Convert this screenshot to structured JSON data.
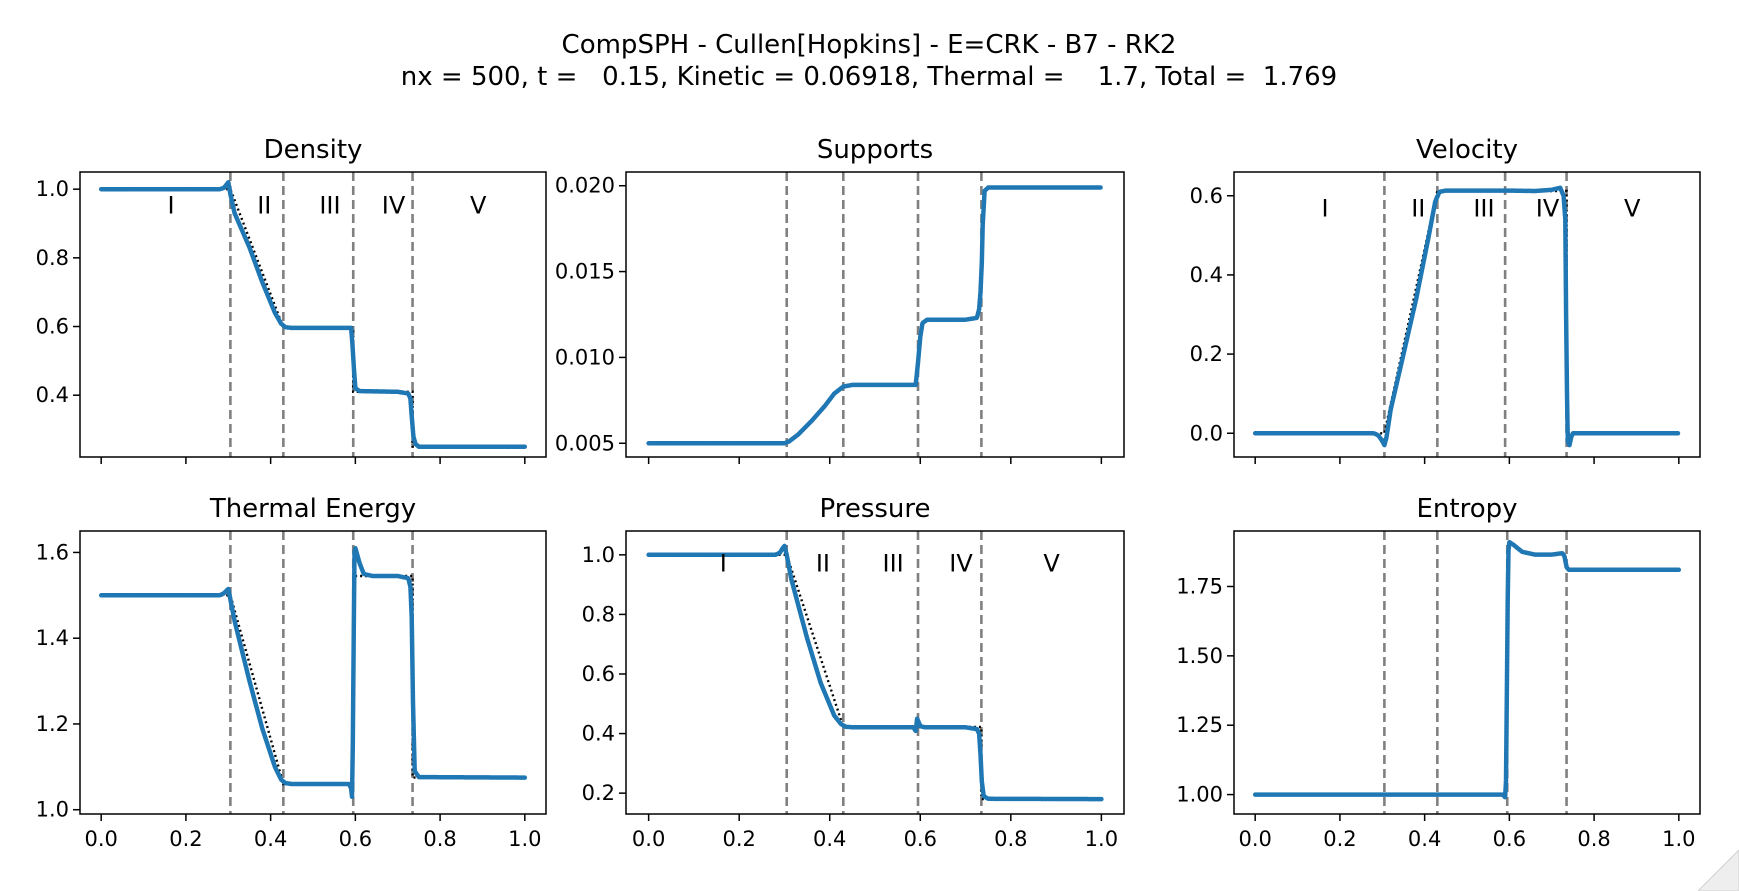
{
  "figure": {
    "title_line1": "CompSPH - Cullen[Hopkins] - E=CRK - B7 - RK2",
    "title_line2": "nx = 500, t =   0.15, Kinetic = 0.06918, Thermal =    1.7, Total =  1.769"
  },
  "colors": {
    "simulation": "#1f77b4",
    "reference": "#000000",
    "region_lines": "#808080"
  },
  "chart_data": [
    {
      "type": "line",
      "title": "Density",
      "xlim": [
        -0.05,
        1.05
      ],
      "ylim": [
        0.22,
        1.05
      ],
      "xticks": [
        0.0,
        0.2,
        0.4,
        0.6,
        0.8,
        1.0
      ],
      "xtick_labels_visible": false,
      "yticks": [
        0.4,
        0.6,
        0.8,
        1.0
      ],
      "ytick_labels": [
        "0.4",
        "0.6",
        "0.8",
        "1.0"
      ],
      "region_lines": [
        0.305,
        0.43,
        0.595,
        0.735
      ],
      "regions": [
        {
          "label": "I",
          "x": 0.165
        },
        {
          "label": "II",
          "x": 0.385
        },
        {
          "label": "III",
          "x": 0.54
        },
        {
          "label": "IV",
          "x": 0.69
        },
        {
          "label": "V",
          "x": 0.89
        }
      ],
      "region_label_y": 0.955,
      "series": [
        {
          "role": "reference",
          "x": [
            0.0,
            0.305,
            0.43,
            0.595,
            0.595,
            0.735,
            0.735,
            1.0
          ],
          "y": [
            1.0,
            1.0,
            0.597,
            0.597,
            0.41,
            0.41,
            0.25,
            0.25
          ]
        },
        {
          "role": "simulation",
          "x": [
            0.0,
            0.28,
            0.29,
            0.295,
            0.3,
            0.305,
            0.315,
            0.35,
            0.38,
            0.41,
            0.425,
            0.435,
            0.45,
            0.59,
            0.593,
            0.597,
            0.6,
            0.61,
            0.7,
            0.725,
            0.73,
            0.733,
            0.737,
            0.742,
            0.75,
            1.0
          ],
          "y": [
            1.0,
            1.0,
            1.004,
            1.012,
            1.02,
            0.985,
            0.93,
            0.83,
            0.73,
            0.64,
            0.608,
            0.598,
            0.596,
            0.596,
            0.55,
            0.47,
            0.42,
            0.412,
            0.41,
            0.405,
            0.39,
            0.34,
            0.28,
            0.258,
            0.25,
            0.25
          ]
        }
      ]
    },
    {
      "type": "line",
      "title": "Supports",
      "xlim": [
        -0.05,
        1.05
      ],
      "ylim": [
        0.0042,
        0.0208
      ],
      "xticks": [
        0.0,
        0.2,
        0.4,
        0.6,
        0.8,
        1.0
      ],
      "xtick_labels_visible": false,
      "yticks": [
        0.005,
        0.01,
        0.015,
        0.02
      ],
      "ytick_labels": [
        "0.005",
        "0.010",
        "0.015",
        "0.020"
      ],
      "region_lines": [
        0.305,
        0.43,
        0.595,
        0.735
      ],
      "regions": [],
      "region_label_y": null,
      "series": [
        {
          "role": "simulation",
          "x": [
            0.0,
            0.3,
            0.31,
            0.33,
            0.36,
            0.39,
            0.41,
            0.43,
            0.45,
            0.59,
            0.595,
            0.6,
            0.605,
            0.615,
            0.7,
            0.725,
            0.73,
            0.733,
            0.736,
            0.738,
            0.742,
            0.75,
            1.0
          ],
          "y": [
            0.005,
            0.005,
            0.0051,
            0.0055,
            0.0063,
            0.0072,
            0.0079,
            0.0083,
            0.0084,
            0.0084,
            0.0097,
            0.0112,
            0.012,
            0.0122,
            0.0122,
            0.0123,
            0.0128,
            0.0138,
            0.0155,
            0.0177,
            0.0197,
            0.0199,
            0.0199
          ]
        }
      ]
    },
    {
      "type": "line",
      "title": "Velocity",
      "xlim": [
        -0.05,
        1.05
      ],
      "ylim": [
        -0.06,
        0.66
      ],
      "xticks": [
        0.0,
        0.2,
        0.4,
        0.6,
        0.8,
        1.0
      ],
      "xtick_labels_visible": false,
      "yticks": [
        0.0,
        0.2,
        0.4,
        0.6
      ],
      "ytick_labels": [
        "0.0",
        "0.2",
        "0.4",
        "0.6"
      ],
      "region_lines": [
        0.305,
        0.43,
        0.59,
        0.735
      ],
      "regions": [
        {
          "label": "I",
          "x": 0.165
        },
        {
          "label": "II",
          "x": 0.385
        },
        {
          "label": "III",
          "x": 0.54
        },
        {
          "label": "IV",
          "x": 0.69
        },
        {
          "label": "V",
          "x": 0.89
        }
      ],
      "region_label_y": 0.57,
      "series": [
        {
          "role": "reference",
          "x": [
            0.0,
            0.305,
            0.43,
            0.735,
            0.735,
            1.0
          ],
          "y": [
            0.0,
            0.0,
            0.612,
            0.612,
            0.0,
            0.0
          ]
        },
        {
          "role": "simulation",
          "x": [
            0.0,
            0.28,
            0.29,
            0.295,
            0.3,
            0.305,
            0.31,
            0.32,
            0.35,
            0.38,
            0.41,
            0.425,
            0.435,
            0.45,
            0.6,
            0.66,
            0.7,
            0.72,
            0.728,
            0.732,
            0.734,
            0.736,
            0.738,
            0.742,
            0.746,
            0.75,
            0.76,
            1.0
          ],
          "y": [
            0.0,
            0.0,
            -0.005,
            -0.012,
            -0.02,
            -0.03,
            -0.01,
            0.06,
            0.2,
            0.34,
            0.5,
            0.585,
            0.61,
            0.613,
            0.613,
            0.612,
            0.615,
            0.62,
            0.6,
            0.54,
            0.3,
            0.1,
            -0.02,
            -0.03,
            -0.01,
            0.0,
            0.0,
            0.0
          ]
        }
      ]
    },
    {
      "type": "line",
      "title": "Thermal Energy",
      "xlim": [
        -0.05,
        1.05
      ],
      "ylim": [
        0.99,
        1.65
      ],
      "xticks": [
        0.0,
        0.2,
        0.4,
        0.6,
        0.8,
        1.0
      ],
      "xtick_labels": [
        "0.0",
        "0.2",
        "0.4",
        "0.6",
        "0.8",
        "1.0"
      ],
      "xtick_labels_visible": true,
      "yticks": [
        1.0,
        1.2,
        1.4,
        1.6
      ],
      "ytick_labels": [
        "1.0",
        "1.2",
        "1.4",
        "1.6"
      ],
      "region_lines": [
        0.305,
        0.43,
        0.595,
        0.735
      ],
      "regions": [],
      "region_label_y": null,
      "series": [
        {
          "role": "reference",
          "x": [
            0.0,
            0.305,
            0.43,
            0.595,
            0.595,
            0.735,
            0.735,
            1.0
          ],
          "y": [
            1.5,
            1.5,
            1.06,
            1.06,
            1.545,
            1.545,
            1.075,
            1.075
          ]
        },
        {
          "role": "simulation",
          "x": [
            0.0,
            0.28,
            0.29,
            0.295,
            0.3,
            0.305,
            0.315,
            0.35,
            0.38,
            0.41,
            0.425,
            0.435,
            0.45,
            0.585,
            0.59,
            0.592,
            0.594,
            0.596,
            0.598,
            0.6,
            0.61,
            0.62,
            0.64,
            0.7,
            0.725,
            0.73,
            0.733,
            0.736,
            0.74,
            0.75,
            1.0
          ],
          "y": [
            1.5,
            1.5,
            1.505,
            1.51,
            1.515,
            1.49,
            1.44,
            1.3,
            1.19,
            1.1,
            1.07,
            1.062,
            1.06,
            1.06,
            1.05,
            1.03,
            1.15,
            1.4,
            1.6,
            1.61,
            1.575,
            1.55,
            1.545,
            1.545,
            1.54,
            1.52,
            1.45,
            1.25,
            1.09,
            1.076,
            1.075
          ]
        }
      ]
    },
    {
      "type": "line",
      "title": "Pressure",
      "xlim": [
        -0.05,
        1.05
      ],
      "ylim": [
        0.13,
        1.08
      ],
      "xticks": [
        0.0,
        0.2,
        0.4,
        0.6,
        0.8,
        1.0
      ],
      "xtick_labels": [
        "0.0",
        "0.2",
        "0.4",
        "0.6",
        "0.8",
        "1.0"
      ],
      "xtick_labels_visible": true,
      "yticks": [
        0.2,
        0.4,
        0.6,
        0.8,
        1.0
      ],
      "ytick_labels": [
        "0.2",
        "0.4",
        "0.6",
        "0.8",
        "1.0"
      ],
      "region_lines": [
        0.305,
        0.43,
        0.595,
        0.735
      ],
      "regions": [
        {
          "label": "I",
          "x": 0.165
        },
        {
          "label": "II",
          "x": 0.385
        },
        {
          "label": "III",
          "x": 0.54
        },
        {
          "label": "IV",
          "x": 0.69
        },
        {
          "label": "V",
          "x": 0.89
        }
      ],
      "region_label_y": 0.975,
      "series": [
        {
          "role": "reference",
          "x": [
            0.0,
            0.305,
            0.43,
            0.735,
            0.735,
            1.0
          ],
          "y": [
            1.0,
            1.0,
            0.422,
            0.422,
            0.18,
            0.18
          ]
        },
        {
          "role": "simulation",
          "x": [
            0.0,
            0.28,
            0.29,
            0.295,
            0.3,
            0.305,
            0.315,
            0.35,
            0.38,
            0.41,
            0.425,
            0.435,
            0.45,
            0.585,
            0.59,
            0.593,
            0.596,
            0.6,
            0.61,
            0.7,
            0.725,
            0.73,
            0.733,
            0.736,
            0.74,
            0.75,
            1.0
          ],
          "y": [
            1.0,
            1.0,
            1.007,
            1.02,
            1.03,
            1.0,
            0.92,
            0.72,
            0.57,
            0.46,
            0.432,
            0.423,
            0.421,
            0.421,
            0.408,
            0.45,
            0.44,
            0.425,
            0.421,
            0.421,
            0.415,
            0.4,
            0.33,
            0.24,
            0.19,
            0.181,
            0.18
          ]
        }
      ]
    },
    {
      "type": "line",
      "title": "Entropy",
      "xlim": [
        -0.05,
        1.05
      ],
      "ylim": [
        0.93,
        1.95
      ],
      "xticks": [
        0.0,
        0.2,
        0.4,
        0.6,
        0.8,
        1.0
      ],
      "xtick_labels": [
        "0.0",
        "0.2",
        "0.4",
        "0.6",
        "0.8",
        "1.0"
      ],
      "xtick_labels_visible": true,
      "yticks": [
        1.0,
        1.25,
        1.5,
        1.75
      ],
      "ytick_labels": [
        "1.00",
        "1.25",
        "1.50",
        "1.75"
      ],
      "region_lines": [
        0.305,
        0.43,
        0.595,
        0.735
      ],
      "regions": [],
      "region_label_y": null,
      "series": [
        {
          "role": "simulation",
          "x": [
            0.0,
            0.585,
            0.59,
            0.592,
            0.594,
            0.596,
            0.598,
            0.6,
            0.61,
            0.63,
            0.66,
            0.7,
            0.725,
            0.73,
            0.735,
            0.74,
            0.75,
            1.0
          ],
          "y": [
            1.0,
            1.0,
            0.99,
            1.05,
            1.35,
            1.7,
            1.88,
            1.91,
            1.9,
            1.875,
            1.865,
            1.865,
            1.87,
            1.86,
            1.82,
            1.81,
            1.81,
            1.81
          ]
        }
      ]
    }
  ]
}
